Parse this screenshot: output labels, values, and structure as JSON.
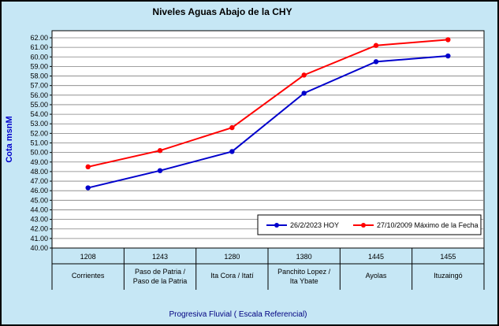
{
  "chart_data": {
    "type": "line",
    "title": "Niveles Aguas Abajo de la CHY",
    "ylabel": "Cota msnM",
    "xlabel": "Progresiva Fluvial ( Escala Referencial)",
    "ylim": [
      40,
      62
    ],
    "ytick_step": 1,
    "ytick_decimals": 2,
    "grid": true,
    "legend_position": "inside-bottom-right",
    "categories": [
      {
        "km": "1208",
        "name": [
          "Corrientes"
        ]
      },
      {
        "km": "1243",
        "name": [
          "Paso de Patria /",
          "Paso de la Patria"
        ]
      },
      {
        "km": "1280",
        "name": [
          "Ita Cora / Itatí"
        ]
      },
      {
        "km": "1380",
        "name": [
          "Panchito Lopez /",
          "Ita Ybate"
        ]
      },
      {
        "km": "1445",
        "name": [
          "Ayolas"
        ]
      },
      {
        "km": "1455",
        "name": [
          "Ituzaingó"
        ]
      }
    ],
    "series": [
      {
        "name": "26/2/2023 HOY",
        "color": "#0000CC",
        "values": [
          46.3,
          48.1,
          50.1,
          56.2,
          59.5,
          60.1
        ]
      },
      {
        "name": "27/10/2009 Máximo de la Fecha",
        "color": "#FF0000",
        "values": [
          48.5,
          50.2,
          52.6,
          58.1,
          61.2,
          61.8
        ]
      }
    ],
    "colors": {
      "background": "#C6E7F5",
      "plot_background": "#FFFFFF",
      "gridline": "#808080",
      "axis": "#000000",
      "tick_label": "#000000",
      "legend_background": "#FFFFFF",
      "legend_border": "#000000"
    }
  }
}
